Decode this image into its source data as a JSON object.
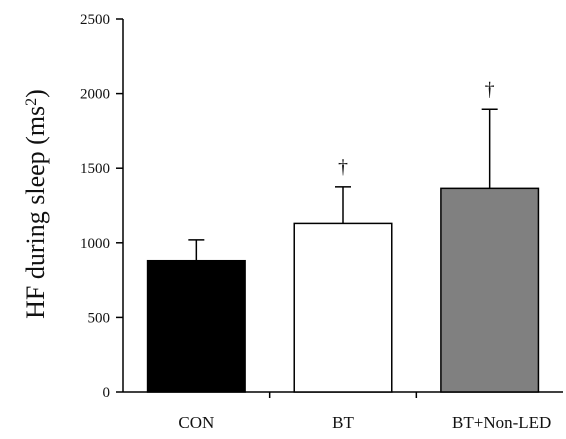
{
  "chart_data": {
    "type": "bar",
    "title": "",
    "xlabel": "",
    "ylabel": "HF during sleep (ms",
    "ylabel_superscript": "2",
    "ylabel_suffix": ")",
    "ylim": [
      0,
      2500
    ],
    "yticks": [
      0,
      500,
      1000,
      1500,
      2000,
      2500
    ],
    "ytick_labels": [
      "0",
      "500",
      "1000",
      "1500",
      "2000",
      "2500"
    ],
    "categories": [
      "CON",
      "BT",
      "BT+Non-LED"
    ],
    "values": [
      880,
      1130,
      1365
    ],
    "error_upper": [
      1020,
      1375,
      1895
    ],
    "significance_markers": [
      "",
      "†",
      "†"
    ],
    "bar_fills": [
      "#000000",
      "#ffffff",
      "#808080"
    ],
    "grid": false
  }
}
